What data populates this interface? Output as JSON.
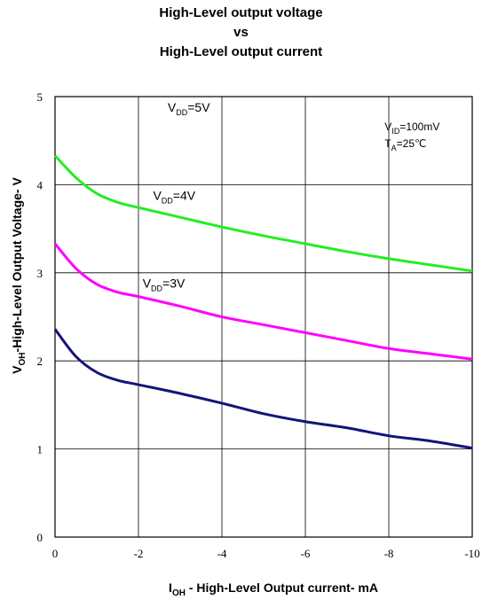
{
  "chart_data": {
    "type": "line",
    "title_lines": [
      "High-Level output voltage",
      "vs",
      "High-Level output current"
    ],
    "xlabel": {
      "main": "I",
      "sub": "OH",
      "rest": " - High-Level Output current- mA"
    },
    "ylabel": {
      "main": "V",
      "sub": "OH",
      "rest": "-High-Level Output Voltage- V"
    },
    "xlim": [
      0,
      -10
    ],
    "ylim": [
      0,
      5
    ],
    "x_ticks": [
      0,
      -2,
      -4,
      -6,
      -8,
      -10
    ],
    "x_tick_labels": [
      "0",
      "-2",
      "-4",
      "-6",
      "-8",
      "-10"
    ],
    "y_ticks": [
      0,
      1,
      2,
      3,
      4,
      5
    ],
    "y_tick_labels": [
      "0",
      "1",
      "2",
      "3",
      "4",
      "5"
    ],
    "grid": true,
    "conditions": [
      {
        "main": "V",
        "sub": "ID",
        "rest": "=100mV"
      },
      {
        "main": "T",
        "sub": "A",
        "rest": "=25℃"
      }
    ],
    "series": [
      {
        "name": "VDD=5V",
        "label": {
          "main": "V",
          "sub": "DD",
          "rest": "=5V"
        },
        "color": "#22ee22",
        "x": [
          0,
          -0.5,
          -1,
          -1.5,
          -2,
          -3,
          -4,
          -5,
          -6,
          -7,
          -8,
          -9,
          -10
        ],
        "y": [
          4.33,
          4.08,
          3.9,
          3.8,
          3.74,
          3.63,
          3.52,
          3.42,
          3.33,
          3.24,
          3.16,
          3.09,
          3.02
        ]
      },
      {
        "name": "VDD=4V",
        "label": {
          "main": "V",
          "sub": "DD",
          "rest": "=4V"
        },
        "color": "#ff00ff",
        "x": [
          0,
          -0.5,
          -1,
          -1.5,
          -2,
          -3,
          -4,
          -5,
          -6,
          -7,
          -8,
          -9,
          -10
        ],
        "y": [
          3.33,
          3.05,
          2.87,
          2.78,
          2.73,
          2.62,
          2.5,
          2.41,
          2.32,
          2.23,
          2.14,
          2.08,
          2.02
        ]
      },
      {
        "name": "VDD=3V",
        "label": {
          "main": "V",
          "sub": "DD",
          "rest": "=3V"
        },
        "color": "#14147a",
        "x": [
          0,
          -0.5,
          -1,
          -1.5,
          -2,
          -3,
          -4,
          -5,
          -6,
          -7,
          -8,
          -9,
          -10
        ],
        "y": [
          2.36,
          2.05,
          1.87,
          1.78,
          1.73,
          1.63,
          1.52,
          1.4,
          1.31,
          1.24,
          1.15,
          1.09,
          1.01
        ]
      }
    ]
  }
}
